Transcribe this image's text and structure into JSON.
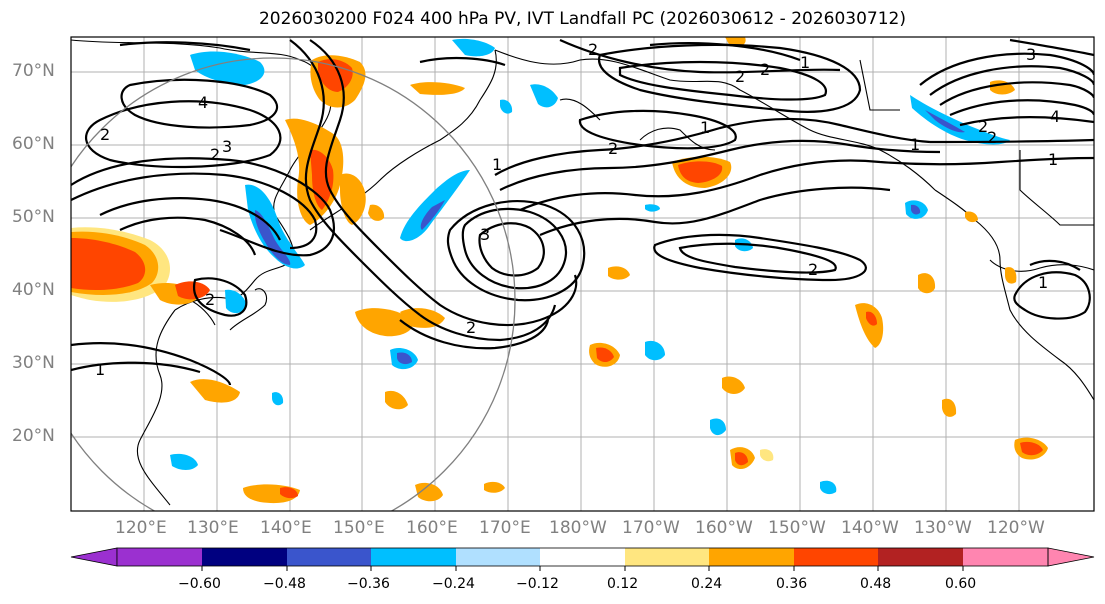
{
  "title": "2026030200 F024 400 hPa PV, IVT Landfall PC (2026030612 - 2026030712)",
  "lat_labels": [
    "70°N",
    "60°N",
    "50°N",
    "40°N",
    "30°N",
    "20°N"
  ],
  "lon_labels": [
    "120°E",
    "130°E",
    "140°E",
    "150°E",
    "160°E",
    "170°E",
    "180°W",
    "170°W",
    "160°W",
    "150°W",
    "140°W",
    "130°W",
    "120°W"
  ],
  "colorbar": {
    "labels": [
      "−0.60",
      "−0.48",
      "−0.36",
      "−0.24",
      "−0.12",
      "0.12",
      "0.24",
      "0.36",
      "0.48",
      "0.60"
    ],
    "colors": [
      "#9b30d0",
      "#000080",
      "#3a55cc",
      "#00bfff",
      "#b0e0ff",
      "#ffffff",
      "#ffe680",
      "#ffa500",
      "#ff4500",
      "#b22222",
      "#ff85b0"
    ]
  },
  "contour_labels": [
    "2",
    "4",
    "2",
    "3",
    "2",
    "1",
    "2",
    "3",
    "1",
    "1",
    "2",
    "2",
    "1",
    "2",
    "4",
    "2",
    "1",
    "1",
    "2",
    "2",
    "3",
    "2",
    "1"
  ],
  "colors": {
    "frame": "#000000",
    "grid": "#b0b0b0",
    "axis_label": "#808080"
  }
}
